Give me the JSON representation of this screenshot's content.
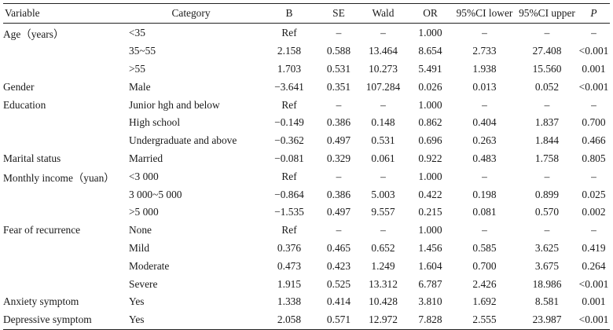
{
  "headers": {
    "variable": "Variable",
    "category": "Category",
    "b": "B",
    "se": "SE",
    "wald": "Wald",
    "or": "OR",
    "ci_lower": "95%CI lower",
    "ci_upper": "95%CI upper",
    "p": "P"
  },
  "rows": [
    {
      "variable": "Age（years）",
      "category": "<35",
      "b": "Ref",
      "se": "–",
      "wald": "–",
      "or": "1.000",
      "lo": "–",
      "up": "–",
      "p": "–"
    },
    {
      "variable": "",
      "category": "35~55",
      "b": "2.158",
      "se": "0.588",
      "wald": "13.464",
      "or": "8.654",
      "lo": "2.733",
      "up": "27.408",
      "p": "<0.001"
    },
    {
      "variable": "",
      "category": ">55",
      "b": "1.703",
      "se": "0.531",
      "wald": "10.273",
      "or": "5.491",
      "lo": "1.938",
      "up": "15.560",
      "p": "0.001"
    },
    {
      "variable": "Gender",
      "category": "Male",
      "b": "−3.641",
      "se": "0.351",
      "wald": "107.284",
      "or": "0.026",
      "lo": "0.013",
      "up": "0.052",
      "p": "<0.001"
    },
    {
      "variable": "Education",
      "category": "Junior hgh and below",
      "b": "Ref",
      "se": "–",
      "wald": "–",
      "or": "1.000",
      "lo": "–",
      "up": "–",
      "p": "–"
    },
    {
      "variable": "",
      "category": "High school",
      "b": "−0.149",
      "se": "0.386",
      "wald": "0.148",
      "or": "0.862",
      "lo": "0.404",
      "up": "1.837",
      "p": "0.700"
    },
    {
      "variable": "",
      "category": "Undergraduate and above",
      "b": "−0.362",
      "se": "0.497",
      "wald": "0.531",
      "or": "0.696",
      "lo": "0.263",
      "up": "1.844",
      "p": "0.466"
    },
    {
      "variable": "Marital status",
      "category": "Married",
      "b": "−0.081",
      "se": "0.329",
      "wald": "0.061",
      "or": "0.922",
      "lo": "0.483",
      "up": "1.758",
      "p": "0.805"
    },
    {
      "variable": "Monthly income（yuan）",
      "category": "<3 000",
      "b": "Ref",
      "se": "–",
      "wald": "–",
      "or": "1.000",
      "lo": "–",
      "up": "–",
      "p": "–"
    },
    {
      "variable": "",
      "category": "3 000~5 000",
      "b": "−0.864",
      "se": "0.386",
      "wald": "5.003",
      "or": "0.422",
      "lo": "0.198",
      "up": "0.899",
      "p": "0.025"
    },
    {
      "variable": "",
      "category": ">5 000",
      "b": "−1.535",
      "se": "0.497",
      "wald": "9.557",
      "or": "0.215",
      "lo": "0.081",
      "up": "0.570",
      "p": "0.002"
    },
    {
      "variable": "Fear of recurrence",
      "category": "None",
      "b": "Ref",
      "se": "–",
      "wald": "–",
      "or": "1.000",
      "lo": "–",
      "up": "–",
      "p": "–"
    },
    {
      "variable": "",
      "category": "Mild",
      "b": "0.376",
      "se": "0.465",
      "wald": "0.652",
      "or": "1.456",
      "lo": "0.585",
      "up": "3.625",
      "p": "0.419"
    },
    {
      "variable": "",
      "category": "Moderate",
      "b": "0.473",
      "se": "0.423",
      "wald": "1.249",
      "or": "1.604",
      "lo": "0.700",
      "up": "3.675",
      "p": "0.264"
    },
    {
      "variable": "",
      "category": "Severe",
      "b": "1.915",
      "se": "0.525",
      "wald": "13.312",
      "or": "6.787",
      "lo": "2.426",
      "up": "18.986",
      "p": "<0.001"
    },
    {
      "variable": "Anxiety symptom",
      "category": "Yes",
      "b": "1.338",
      "se": "0.414",
      "wald": "10.428",
      "or": "3.810",
      "lo": "1.692",
      "up": "8.581",
      "p": "0.001"
    },
    {
      "variable": "Depressive symptom",
      "category": "Yes",
      "b": "2.058",
      "se": "0.571",
      "wald": "12.972",
      "or": "7.828",
      "lo": "2.555",
      "up": "23.987",
      "p": "<0.001"
    }
  ]
}
